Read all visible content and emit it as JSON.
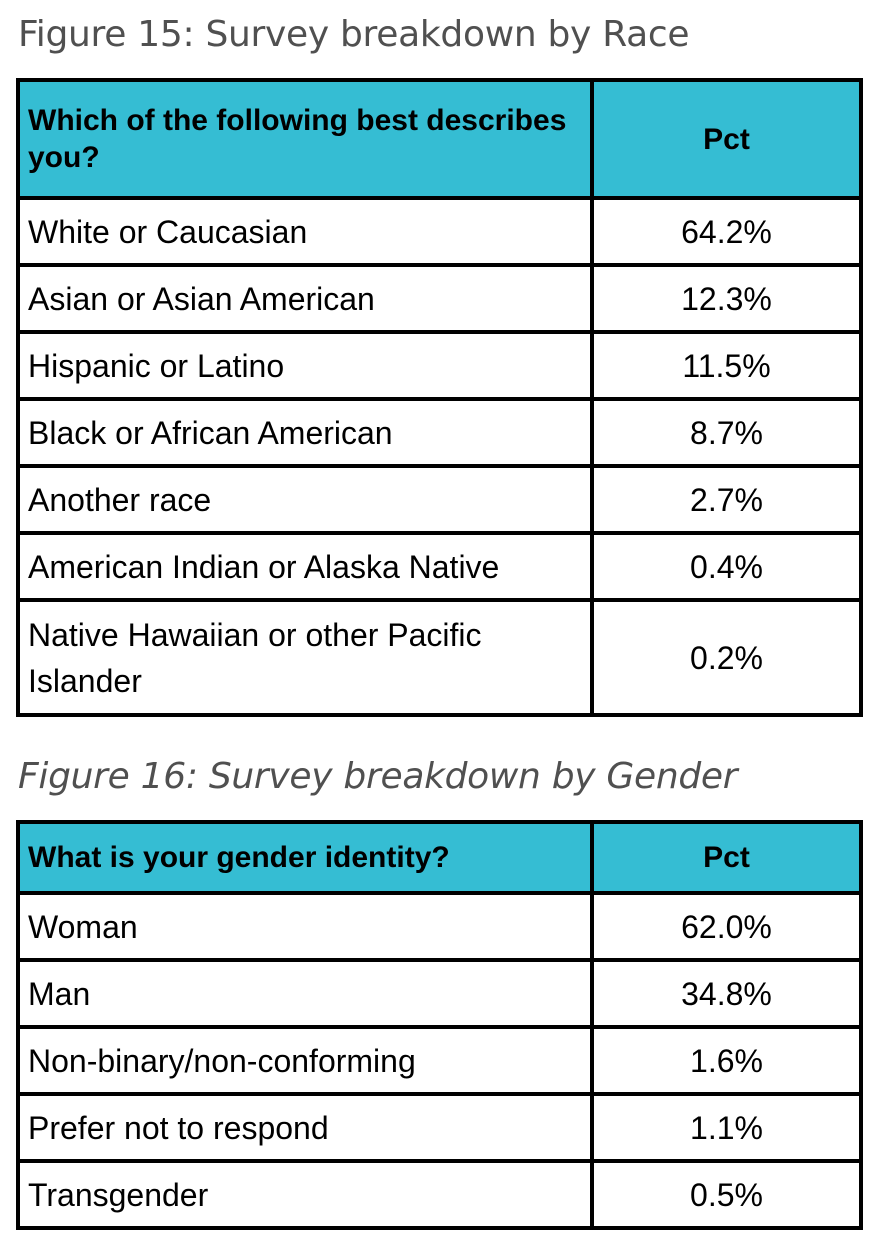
{
  "figure15": {
    "title": "Figure 15: Survey breakdown by Race",
    "question": "Which of the following best describes you?",
    "pct_header": "Pct",
    "rows": [
      {
        "label": "White or Caucasian",
        "pct": "64.2%"
      },
      {
        "label": "Asian or Asian American",
        "pct": "12.3%"
      },
      {
        "label": "Hispanic or Latino",
        "pct": "11.5%"
      },
      {
        "label": "Black or African American",
        "pct": "8.7%"
      },
      {
        "label": "Another race",
        "pct": "2.7%"
      },
      {
        "label": "American Indian or Alaska Native",
        "pct": "0.4%"
      },
      {
        "label": "Native Hawaiian or other Pacific Islander",
        "pct": "0.2%"
      }
    ]
  },
  "figure16": {
    "title": "Figure 16: Survey breakdown by Gender",
    "question": "What is your gender identity?",
    "pct_header": "Pct",
    "rows": [
      {
        "label": "Woman",
        "pct": "62.0%"
      },
      {
        "label": "Man",
        "pct": "34.8%"
      },
      {
        "label": "Non-binary/non-conforming",
        "pct": "1.6%"
      },
      {
        "label": "Prefer not to respond",
        "pct": "1.1%"
      },
      {
        "label": "Transgender",
        "pct": "0.5%"
      }
    ]
  },
  "colors": {
    "header_background": "#35bdd3",
    "border": "#000000",
    "title_text": "#505050"
  }
}
